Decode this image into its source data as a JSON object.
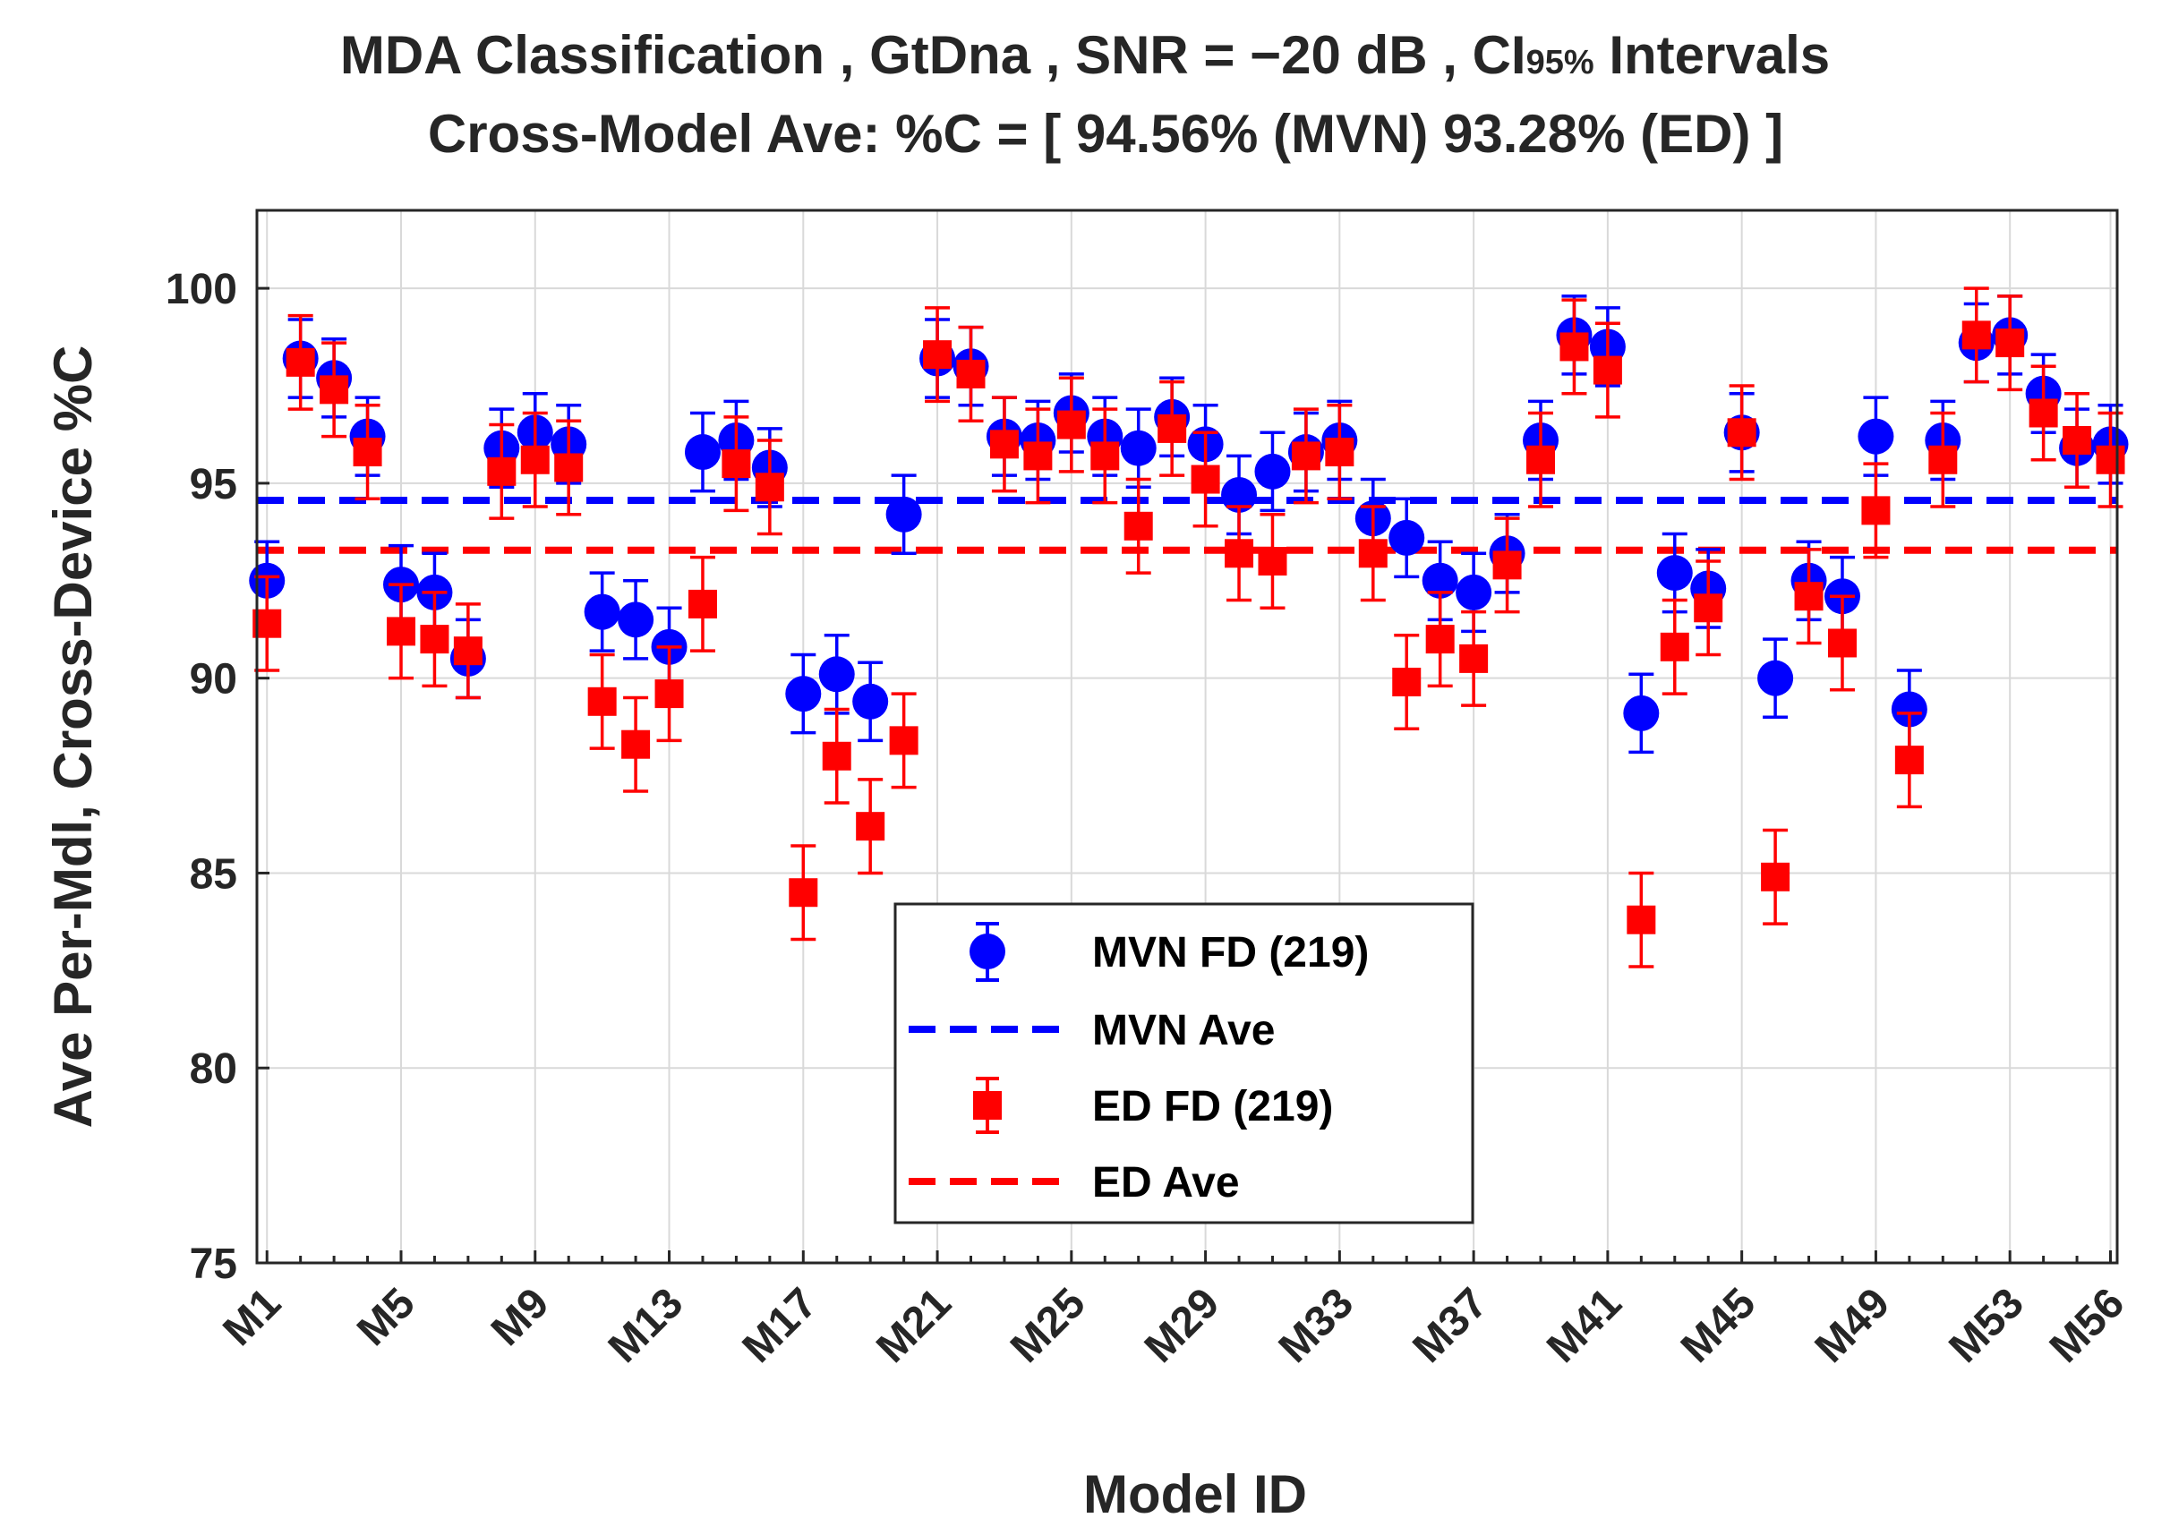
{
  "chart_data": {
    "type": "scatter",
    "title_line1_prefix": "MDA Classification , GtDna , SNR = ",
    "title_line1_snr": "−20 dB",
    "title_line1_ci": " , CI",
    "title_line1_ci_sub": "95%",
    "title_line1_suffix": " Intervals",
    "title_line2": "Cross-Model Ave: %C = [ 94.56% (MVN)   93.28% (ED) ]",
    "xlabel": "Model ID",
    "ylabel": "Ave Per-Mdl, Cross-Device %C",
    "ylim": [
      75,
      102
    ],
    "yticks": [
      75,
      80,
      85,
      90,
      95,
      100
    ],
    "ytick_labels": [
      "75",
      "80",
      "85",
      "90",
      "95",
      "100"
    ],
    "xticks": [
      1,
      5,
      9,
      13,
      17,
      21,
      25,
      29,
      33,
      37,
      41,
      45,
      49,
      53,
      56
    ],
    "xtick_labels": [
      "M1",
      "M5",
      "M9",
      "M13",
      "M17",
      "M21",
      "M25",
      "M29",
      "M33",
      "M37",
      "M41",
      "M45",
      "M49",
      "M53",
      "M56"
    ],
    "xlim": [
      0.7,
      56.2
    ],
    "grid": true,
    "legend_position": "center-bottom",
    "series": [
      {
        "name": "MVN FD (219)",
        "color": "#0000ff",
        "marker": "circle",
        "average": 94.56,
        "average_label": "MVN Ave",
        "values": [
          92.5,
          98.2,
          97.7,
          96.2,
          92.4,
          92.2,
          90.5,
          95.9,
          96.3,
          96.0,
          91.7,
          91.5,
          90.8,
          95.8,
          96.1,
          95.4,
          89.6,
          90.1,
          89.4,
          94.2,
          98.2,
          98.0,
          96.2,
          96.1,
          96.8,
          96.2,
          95.9,
          96.7,
          96.0,
          94.7,
          95.3,
          95.8,
          96.1,
          94.1,
          93.6,
          92.5,
          92.2,
          93.2,
          96.1,
          98.8,
          98.5,
          89.1,
          92.7,
          92.3,
          96.3,
          90.0,
          92.5,
          92.1,
          96.2,
          89.2,
          96.1,
          98.6,
          98.8,
          97.3,
          95.9,
          96.0
        ],
        "ci_halfwidth": 1.0
      },
      {
        "name": "ED FD (219)",
        "color": "#ff0000",
        "marker": "square",
        "average": 93.28,
        "average_label": "ED Ave",
        "values": [
          91.4,
          98.1,
          97.4,
          95.8,
          91.2,
          91.0,
          90.7,
          95.3,
          95.6,
          95.4,
          89.4,
          88.3,
          89.6,
          91.9,
          95.5,
          94.9,
          84.5,
          88.0,
          86.2,
          88.4,
          98.3,
          97.8,
          96.0,
          95.7,
          96.5,
          95.7,
          93.9,
          96.4,
          95.1,
          93.2,
          93.0,
          95.7,
          95.8,
          93.2,
          89.9,
          91.0,
          90.5,
          92.9,
          95.6,
          98.5,
          97.9,
          83.8,
          90.8,
          91.8,
          96.3,
          84.9,
          92.1,
          90.9,
          94.3,
          87.9,
          95.6,
          98.8,
          98.6,
          96.8,
          96.1,
          95.6
        ],
        "ci_halfwidth": 1.2
      }
    ]
  }
}
